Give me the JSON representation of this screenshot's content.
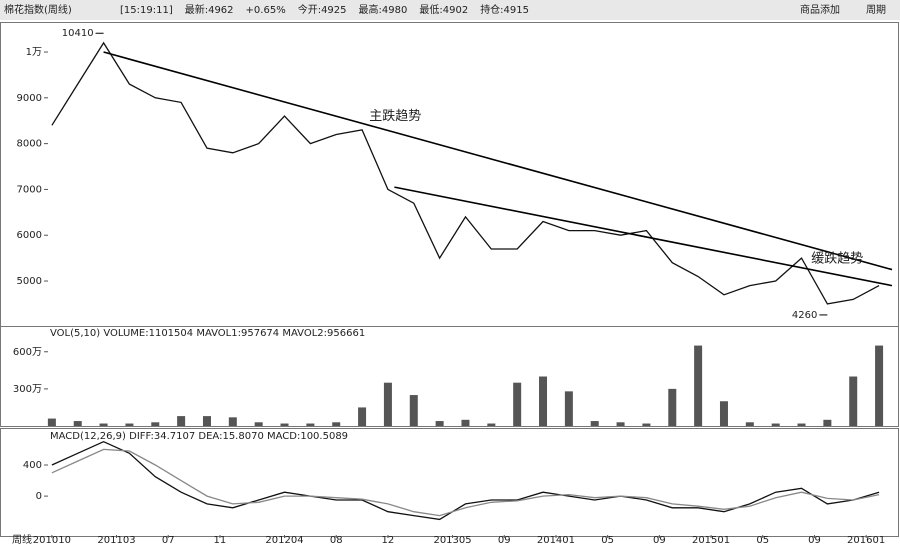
{
  "header": {
    "left": "棉花指数(周线)",
    "items": [
      "[15:19:11]",
      "最新:4962",
      "+0.65%",
      "今开:4925",
      "最高:4980",
      "最低:4902",
      "持仓:4915"
    ],
    "right": [
      "商品添加",
      "周期"
    ]
  },
  "period_label": "周线",
  "chart_data": [
    {
      "type": "line",
      "xlim": [
        -0.3,
        65
      ],
      "x": [
        0,
        2,
        4,
        6,
        8,
        10,
        12,
        14,
        16,
        18,
        20,
        22,
        24,
        26,
        28,
        30,
        32,
        34,
        36,
        38,
        40,
        42,
        44,
        46,
        48,
        50,
        52,
        54,
        56,
        58,
        60,
        62,
        64
      ],
      "ylim": [
        4040,
        10590
      ],
      "yticks": [
        {
          "value": 10000,
          "label": "1万"
        },
        9000,
        8000,
        7000,
        6000,
        5000
      ],
      "series": [
        {
          "color": "#111111",
          "values": [
            8400,
            9300,
            10200,
            9300,
            9000,
            8900,
            7900,
            7800,
            8000,
            8600,
            8000,
            8200,
            8300,
            7000,
            6700,
            5500,
            6400,
            5700,
            5700,
            6300,
            6100,
            6100,
            6000,
            6100,
            5400,
            5100,
            4700,
            4900,
            5000,
            5500,
            4500,
            4600,
            4900
          ]
        }
      ],
      "trend_lines": [
        {
          "label": "主跌趋势",
          "x": [
            4,
            65
          ],
          "y": [
            10000,
            5250
          ]
        },
        {
          "label": "缓跌趋势",
          "x": [
            26.5,
            65
          ],
          "y": [
            7050,
            4900
          ]
        }
      ],
      "annotations": [
        {
          "label": "10410",
          "x": 4,
          "value": 10410
        },
        {
          "label": "4260",
          "x": 60,
          "value": 4260
        }
      ]
    },
    {
      "type": "bar",
      "title": "VOL(5,10) VOLUME:1101504 MAVOL1:957674 MAVOL2:956661",
      "xlim": [
        -0.3,
        65
      ],
      "x": [
        0,
        2,
        4,
        6,
        8,
        10,
        12,
        14,
        16,
        18,
        20,
        22,
        24,
        26,
        28,
        30,
        32,
        34,
        36,
        38,
        40,
        42,
        44,
        46,
        48,
        50,
        52,
        54,
        56,
        58,
        60,
        62,
        64
      ],
      "ylim": [
        0,
        8000000
      ],
      "yticks": [
        {
          "value": 6000000,
          "label": "600万"
        },
        {
          "value": 3000000,
          "label": "300万"
        }
      ],
      "color": "#555555",
      "values": [
        600000,
        400000,
        200000,
        200000,
        300000,
        800000,
        800000,
        700000,
        300000,
        200000,
        200000,
        300000,
        1500000,
        3500000,
        2500000,
        400000,
        500000,
        200000,
        3500000,
        4000000,
        2800000,
        400000,
        300000,
        200000,
        3000000,
        6500000,
        2000000,
        300000,
        200000,
        200000,
        500000,
        4000000,
        6500000
      ]
    },
    {
      "type": "line",
      "title": "MACD(12,26,9) DIFF:34.7107 DEA:15.8070 MACD:100.5089",
      "xlim": [
        -0.3,
        65
      ],
      "x": [
        0,
        2,
        4,
        6,
        8,
        10,
        12,
        14,
        16,
        18,
        20,
        22,
        24,
        26,
        28,
        30,
        32,
        34,
        36,
        38,
        40,
        42,
        44,
        46,
        48,
        50,
        52,
        54,
        56,
        58,
        60,
        62,
        64
      ],
      "ylim": [
        -500,
        850
      ],
      "yticks": [
        400,
        0
      ],
      "xticks": [
        {
          "value": 0,
          "label": "201010"
        },
        {
          "value": 5,
          "label": "201103"
        },
        {
          "value": 9,
          "label": "07"
        },
        {
          "value": 13,
          "label": "11"
        },
        {
          "value": 18,
          "label": "201204"
        },
        {
          "value": 22,
          "label": "08"
        },
        {
          "value": 26,
          "label": "12"
        },
        {
          "value": 31,
          "label": "201305"
        },
        {
          "value": 35,
          "label": "09"
        },
        {
          "value": 39,
          "label": "201401"
        },
        {
          "value": 43,
          "label": "05"
        },
        {
          "value": 47,
          "label": "09"
        },
        {
          "value": 51,
          "label": "201501"
        },
        {
          "value": 55,
          "label": "05"
        },
        {
          "value": 59,
          "label": "09"
        },
        {
          "value": 63,
          "label": "201601"
        }
      ],
      "series": [
        {
          "name": "DIFF",
          "color": "#111111",
          "values": [
            400,
            550,
            700,
            550,
            250,
            50,
            -100,
            -150,
            -50,
            50,
            0,
            -50,
            -50,
            -200,
            -250,
            -300,
            -100,
            -50,
            -50,
            50,
            0,
            -50,
            0,
            -50,
            -150,
            -150,
            -200,
            -100,
            50,
            100,
            -100,
            -50,
            50
          ]
        },
        {
          "name": "DEA",
          "color": "#888888",
          "values": [
            300,
            450,
            600,
            580,
            400,
            200,
            0,
            -100,
            -80,
            0,
            0,
            -20,
            -40,
            -100,
            -200,
            -250,
            -150,
            -80,
            -60,
            0,
            20,
            -20,
            0,
            -20,
            -100,
            -130,
            -170,
            -130,
            -20,
            50,
            -30,
            -50,
            20
          ]
        }
      ]
    }
  ]
}
